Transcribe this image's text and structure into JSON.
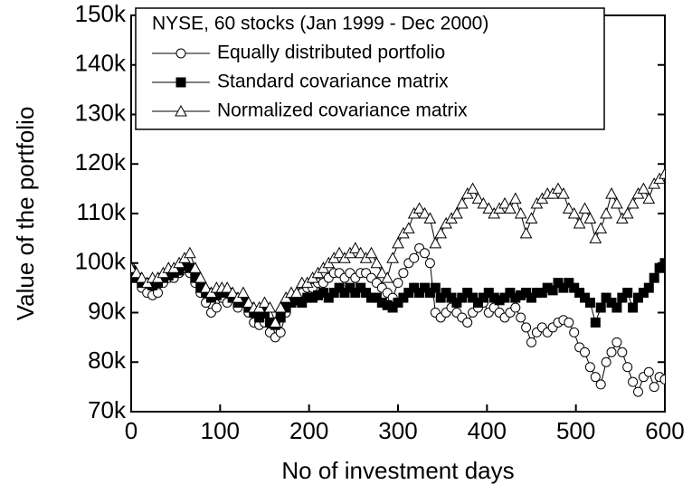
{
  "chart_data": {
    "type": "line",
    "legend_title": "NYSE, 60 stocks (Jan 1999 - Dec 2000)",
    "xlabel": "No of investment days",
    "ylabel": "Value of the portfolio",
    "xlim": [
      0,
      600
    ],
    "ylim": [
      70000,
      150000
    ],
    "xticks": [
      0,
      100,
      200,
      300,
      400,
      500,
      600
    ],
    "yticks": [
      {
        "value": 70000,
        "label": "70k"
      },
      {
        "value": 80000,
        "label": "80k"
      },
      {
        "value": 90000,
        "label": "90k"
      },
      {
        "value": 100000,
        "label": "100k"
      },
      {
        "value": 110000,
        "label": "110k"
      },
      {
        "value": 120000,
        "label": "120k"
      },
      {
        "value": 130000,
        "label": "130k"
      },
      {
        "value": 140000,
        "label": "140k"
      },
      {
        "value": 150000,
        "label": "150k"
      }
    ],
    "legend": "upper left",
    "x": [
      0,
      6,
      12,
      18,
      24,
      30,
      36,
      42,
      48,
      54,
      60,
      66,
      72,
      78,
      84,
      90,
      96,
      102,
      108,
      114,
      120,
      126,
      132,
      138,
      144,
      150,
      156,
      162,
      168,
      174,
      180,
      186,
      192,
      198,
      204,
      210,
      216,
      222,
      228,
      234,
      240,
      246,
      252,
      258,
      264,
      270,
      276,
      282,
      288,
      294,
      300,
      306,
      312,
      318,
      324,
      330,
      336,
      342,
      348,
      354,
      360,
      366,
      372,
      378,
      384,
      390,
      396,
      402,
      408,
      414,
      420,
      426,
      432,
      438,
      444,
      450,
      456,
      462,
      468,
      474,
      480,
      486,
      492,
      498,
      504,
      510,
      516,
      522,
      528,
      534,
      540,
      546,
      552,
      558,
      564,
      570,
      576,
      582,
      588,
      594,
      600
    ],
    "series": [
      {
        "name": "Equally distributed portfolio",
        "color": "#000000",
        "marker": "circle",
        "values": [
          99000,
          97000,
          95000,
          94000,
          93500,
          94000,
          96000,
          97000,
          97000,
          98000,
          99000,
          98000,
          96000,
          94000,
          92000,
          90000,
          91000,
          93000,
          92000,
          93000,
          91000,
          92000,
          90000,
          88000,
          87500,
          88000,
          86000,
          85000,
          86000,
          90000,
          92000,
          93000,
          94000,
          95000,
          95000,
          96000,
          96000,
          97000,
          98000,
          98000,
          97000,
          98000,
          97000,
          98000,
          98000,
          97000,
          96000,
          95000,
          94000,
          93000,
          96000,
          98000,
          100000,
          101000,
          103000,
          102000,
          100000,
          90000,
          89000,
          90000,
          91000,
          90000,
          89000,
          88000,
          90000,
          91000,
          92000,
          90000,
          91000,
          90000,
          89000,
          90000,
          91000,
          89000,
          87000,
          84000,
          86000,
          87000,
          86000,
          87000,
          88000,
          88500,
          88000,
          86000,
          83000,
          82000,
          79000,
          77000,
          75500,
          80000,
          82000,
          84000,
          82000,
          79000,
          76000,
          74000,
          77000,
          78000,
          75000,
          77000,
          76500
        ]
      },
      {
        "name": "Standard covariance matrix",
        "color": "#000000",
        "marker": "square",
        "values": [
          98500,
          97000,
          96000,
          96000,
          95500,
          96000,
          97000,
          97500,
          98000,
          98500,
          99500,
          99000,
          97000,
          95000,
          94000,
          93000,
          93500,
          94000,
          94000,
          93000,
          92000,
          92000,
          91000,
          90000,
          89000,
          90000,
          88000,
          87500,
          89000,
          91000,
          92000,
          92500,
          92000,
          93000,
          93000,
          93500,
          94000,
          93000,
          94000,
          95000,
          94000,
          95000,
          94000,
          95000,
          94000,
          93000,
          93000,
          92000,
          91500,
          91000,
          92000,
          93000,
          94000,
          95000,
          94000,
          95000,
          94000,
          95000,
          93000,
          94000,
          93000,
          92000,
          93000,
          94000,
          93000,
          92000,
          93000,
          94000,
          93000,
          92500,
          93000,
          94000,
          93000,
          93500,
          94000,
          93000,
          94000,
          94000,
          95000,
          94500,
          96000,
          95000,
          96000,
          95000,
          94000,
          93000,
          92000,
          88000,
          91000,
          93000,
          92000,
          91000,
          93000,
          94000,
          91000,
          93000,
          94000,
          95000,
          97000,
          99000,
          100000
        ]
      },
      {
        "name": "Normalized covariance matrix",
        "color": "#000000",
        "marker": "triangle",
        "values": [
          99000,
          98000,
          97000,
          96000,
          97000,
          97000,
          98000,
          99000,
          99000,
          100000,
          101000,
          102000,
          99000,
          97000,
          95000,
          94000,
          95000,
          95000,
          95000,
          94000,
          93000,
          94000,
          92000,
          91000,
          91000,
          92000,
          91000,
          88000,
          91000,
          93000,
          94000,
          94000,
          96000,
          96000,
          97000,
          98000,
          99000,
          100000,
          101000,
          102000,
          101000,
          102000,
          103000,
          102000,
          101000,
          102000,
          100000,
          98000,
          97000,
          101000,
          104000,
          106000,
          107000,
          110000,
          111000,
          110000,
          109000,
          104000,
          106000,
          108000,
          109000,
          110000,
          112000,
          114000,
          115000,
          113000,
          112000,
          111000,
          110000,
          111000,
          112000,
          111000,
          113000,
          110000,
          106000,
          109000,
          112000,
          113000,
          114000,
          114000,
          115000,
          114000,
          111000,
          110000,
          108000,
          111000,
          109000,
          105000,
          107000,
          110000,
          114000,
          112000,
          109000,
          110000,
          112000,
          114000,
          115000,
          113000,
          116000,
          117000,
          118000
        ]
      }
    ]
  }
}
